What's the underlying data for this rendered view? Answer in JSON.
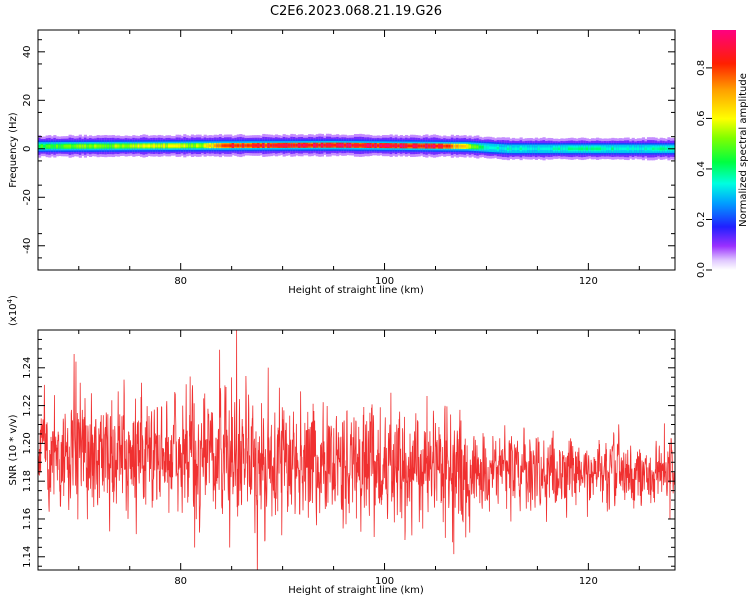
{
  "title": "C2E6.2023.068.21.19.G26",
  "chart_data": [
    {
      "type": "heatmap",
      "ylabel": "Frequency (Hz)",
      "xlabel": "Height of straight line (km)",
      "xlim": [
        66,
        128.5
      ],
      "ylim": [
        -50,
        49
      ],
      "xticks": [
        80,
        100,
        120
      ],
      "yticks": [
        -40,
        -20,
        0,
        20,
        40
      ],
      "tick_labels_x": [
        "80",
        "100",
        "120"
      ],
      "tick_labels_y": [
        "-40",
        "-20",
        "0",
        "20",
        "40"
      ],
      "band": {
        "center_hz": [
          [
            66,
            1
          ],
          [
            95,
            1.5
          ],
          [
            108,
            1
          ],
          [
            112,
            0
          ],
          [
            128.5,
            0
          ]
        ],
        "core_halfwidth_hz": 1.5,
        "halo_halfwidth_hz": 4,
        "peak_amplitude_by_height": [
          [
            66,
            0.45
          ],
          [
            70,
            0.5
          ],
          [
            75,
            0.55
          ],
          [
            78,
            0.6
          ],
          [
            82,
            0.55
          ],
          [
            85,
            0.85
          ],
          [
            90,
            0.85
          ],
          [
            95,
            0.9
          ],
          [
            100,
            0.9
          ],
          [
            105,
            0.88
          ],
          [
            108,
            0.6
          ],
          [
            110,
            0.35
          ],
          [
            115,
            0.35
          ],
          [
            120,
            0.38
          ],
          [
            125,
            0.36
          ],
          [
            128.5,
            0.38
          ]
        ]
      },
      "colorbar": {
        "label": "Normalized spectral amplitude",
        "range": [
          0.0,
          0.95
        ],
        "ticks": [
          0.0,
          0.2,
          0.4,
          0.6,
          0.8
        ],
        "tick_labels": [
          "0.0",
          "0.2",
          "0.4",
          "0.6",
          "0.8"
        ]
      }
    },
    {
      "type": "line",
      "ylabel": "SNR (10 * v/v)",
      "multiplier": "(x10^4)",
      "multiplier_base": "(x10",
      "multiplier_exp": "4",
      "multiplier_close": ")",
      "xlabel": "Height of straight line (km)",
      "xlim": [
        66,
        128.5
      ],
      "ylim": [
        11330,
        12600
      ],
      "xticks": [
        80,
        100,
        120
      ],
      "tick_labels_x": [
        "80",
        "100",
        "120"
      ],
      "yticks": [
        11400,
        11600,
        11800,
        12000,
        12200,
        12400
      ],
      "tick_labels_y": [
        "1.14",
        "1.16",
        "1.18",
        "1.20",
        "1.22",
        "1.24"
      ],
      "series": [
        {
          "color": "#f03030",
          "mean_by_height": [
            [
              66,
              11950
            ],
            [
              80,
              11930
            ],
            [
              90,
              11900
            ],
            [
              100,
              11880
            ],
            [
              110,
              11850
            ],
            [
              128.5,
              11840
            ]
          ],
          "amplitude_by_height": [
            [
              66,
              1200
            ],
            [
              80,
              1300
            ],
            [
              88,
              1350
            ],
            [
              100,
              1200
            ],
            [
              107,
              1250
            ],
            [
              110,
              800
            ],
            [
              128.5,
              700
            ]
          ]
        }
      ]
    }
  ]
}
